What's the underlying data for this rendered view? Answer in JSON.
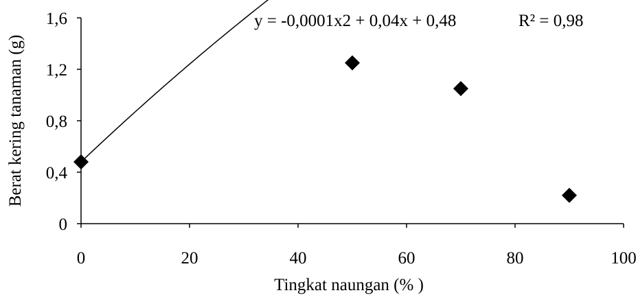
{
  "chart_data": {
    "type": "scatter",
    "xlabel": "Tingkat  naungan (% )",
    "ylabel": "Berat kering tanaman (g)",
    "xlim": [
      0,
      100
    ],
    "ylim": [
      0,
      1.6
    ],
    "x_ticks": [
      0,
      20,
      40,
      60,
      80,
      100
    ],
    "x_tick_labels": [
      "0",
      "20",
      "40",
      "60",
      "80",
      "100"
    ],
    "y_ticks": [
      0,
      0.4,
      0.8,
      1.2,
      1.6
    ],
    "y_tick_labels": [
      "0",
      "0,4",
      "0,8",
      "1,2",
      "1,6"
    ],
    "grid": false,
    "series": [
      {
        "marker": "diamond",
        "color": "#000000",
        "x": [
          0,
          50,
          70,
          90
        ],
        "y": [
          0.48,
          1.25,
          1.05,
          0.22
        ]
      }
    ],
    "trendline": {
      "type": "polynomial",
      "coefficients": [
        -0.0001,
        0.04,
        0.48
      ],
      "x_range": [
        0,
        90
      ],
      "color": "#000000"
    },
    "annotations": {
      "equation": "y = -0,0001x2 + 0,04x + 0,48",
      "r_squared": "R² = 0,98"
    }
  }
}
